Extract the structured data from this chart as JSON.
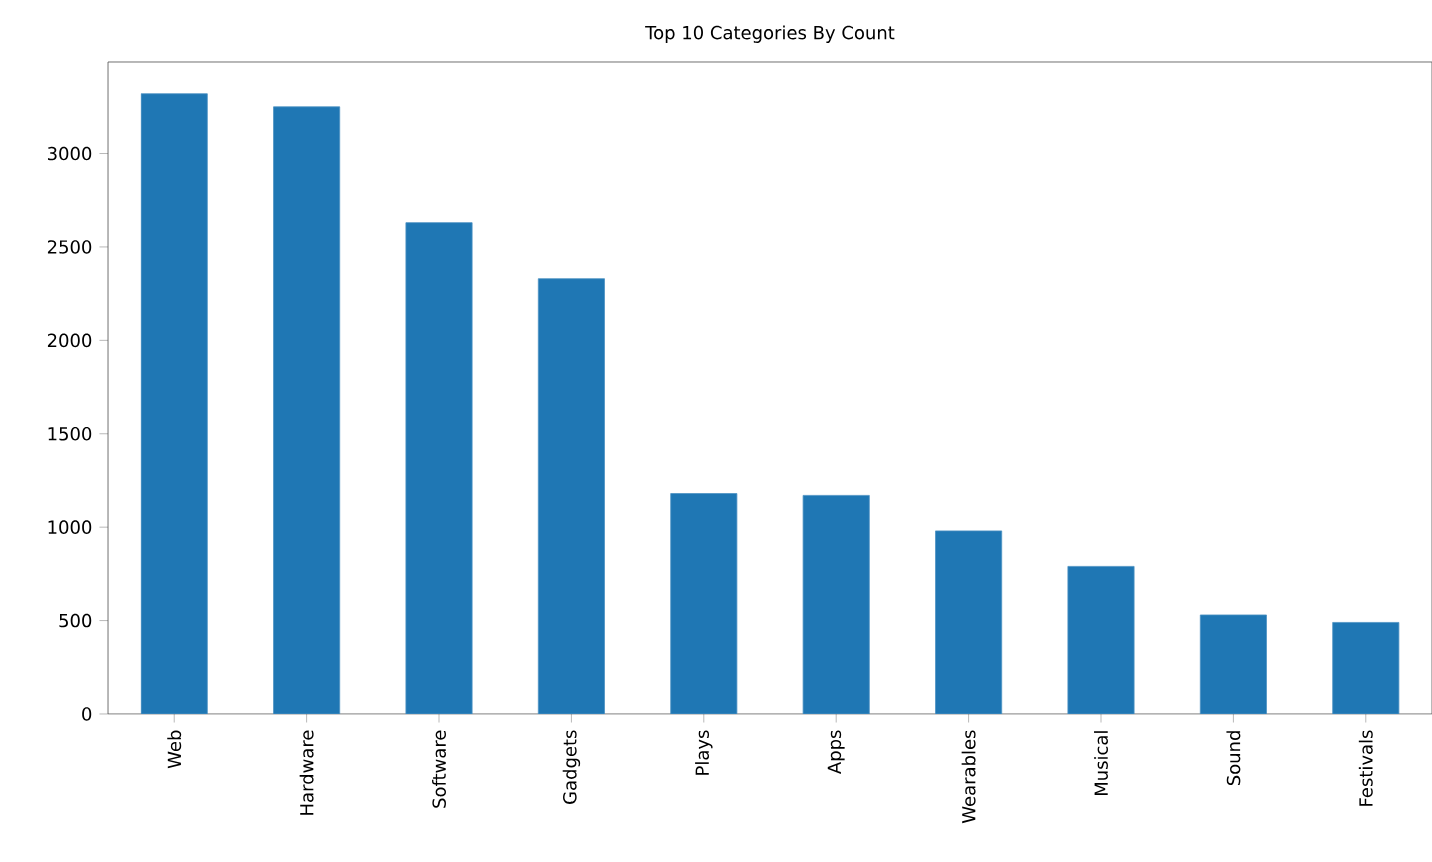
{
  "chart_data": {
    "type": "bar",
    "title": "Top 10 Categories By Count",
    "categories": [
      "Web",
      "Hardware",
      "Software",
      "Gadgets",
      "Plays",
      "Apps",
      "Wearables",
      "Musical",
      "Sound",
      "Festivals"
    ],
    "values": [
      3320,
      3250,
      2630,
      2330,
      1180,
      1170,
      980,
      790,
      530,
      490
    ],
    "color": "#1f77b4",
    "ylim": [
      0,
      3490
    ],
    "yticks": [
      0,
      500,
      1000,
      1500,
      2000,
      2500,
      3000
    ],
    "grid": false
  }
}
